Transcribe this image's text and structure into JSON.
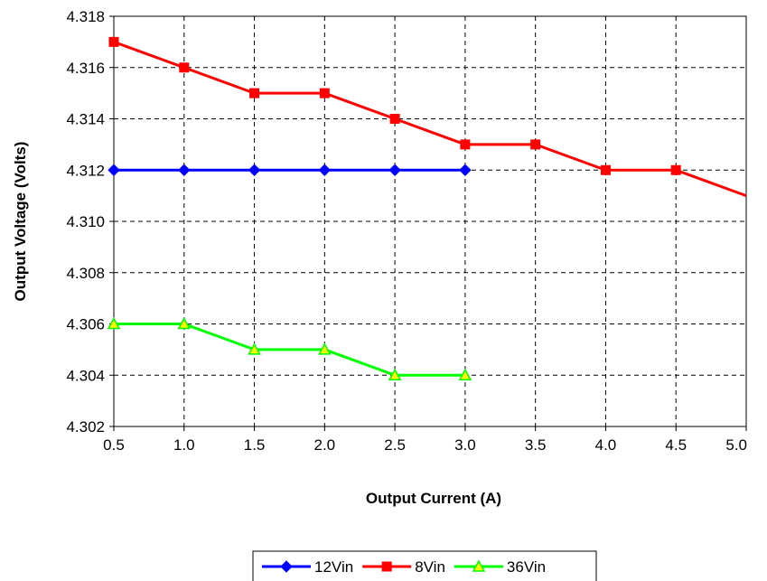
{
  "chart_data": {
    "type": "line",
    "title": "",
    "xlabel": "Output Current (A)",
    "ylabel": "Output Voltage (Volts)",
    "xlim": [
      0.5,
      5.0
    ],
    "ylim": [
      4.302,
      4.318
    ],
    "x_ticks": [
      "0.5",
      "1.0",
      "1.5",
      "2.0",
      "2.5",
      "3.0",
      "3.5",
      "4.0",
      "4.5",
      "5.0"
    ],
    "y_ticks": [
      "4.302",
      "4.304",
      "4.306",
      "4.308",
      "4.310",
      "4.312",
      "4.314",
      "4.316",
      "4.318"
    ],
    "grid": true,
    "legend_position": "bottom",
    "series": [
      {
        "name": "12Vin",
        "color": "#0000ff",
        "marker": "diamond",
        "points": [
          [
            0.5,
            4.312
          ],
          [
            1.0,
            4.312
          ],
          [
            1.5,
            4.312
          ],
          [
            2.0,
            4.312
          ],
          [
            2.5,
            4.312
          ],
          [
            3.0,
            4.312
          ]
        ]
      },
      {
        "name": "8Vin",
        "color": "#ff0000",
        "marker": "square",
        "points": [
          [
            0.5,
            4.317
          ],
          [
            1.0,
            4.316
          ],
          [
            1.5,
            4.315
          ],
          [
            2.0,
            4.315
          ],
          [
            2.5,
            4.314
          ],
          [
            3.0,
            4.313
          ],
          [
            3.5,
            4.313
          ],
          [
            4.0,
            4.312
          ],
          [
            4.5,
            4.312
          ],
          [
            5.0,
            4.311
          ]
        ]
      },
      {
        "name": "36Vin",
        "color": "#00ff00",
        "marker_fill": "#ffff00",
        "marker": "triangle",
        "points": [
          [
            0.5,
            4.306
          ],
          [
            1.0,
            4.306
          ],
          [
            1.5,
            4.305
          ],
          [
            2.0,
            4.305
          ],
          [
            2.5,
            4.304
          ],
          [
            3.0,
            4.304
          ]
        ]
      }
    ]
  }
}
